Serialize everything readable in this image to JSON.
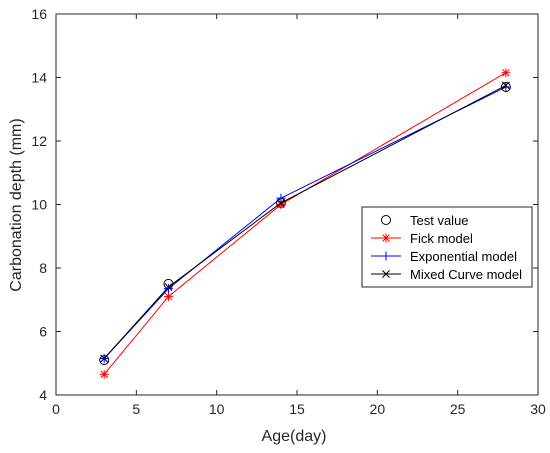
{
  "chart_data": {
    "type": "line",
    "xlabel": "Age(day)",
    "ylabel": "Carbonation depth (mm)",
    "xlim": [
      0,
      30
    ],
    "ylim": [
      4,
      16
    ],
    "xticks": [
      0,
      5,
      10,
      15,
      20,
      25,
      30
    ],
    "yticks": [
      4,
      6,
      8,
      10,
      12,
      14,
      16
    ],
    "grid": false,
    "legend_position": "right",
    "series": [
      {
        "name": "Test value",
        "color": "#000000",
        "marker": "circle",
        "line": false,
        "x": [
          3,
          7,
          14,
          28
        ],
        "y": [
          5.1,
          7.5,
          10.05,
          13.7
        ]
      },
      {
        "name": "Fick model",
        "color": "#ff0000",
        "marker": "asterisk",
        "line": true,
        "x": [
          3,
          7,
          14,
          28
        ],
        "y": [
          4.65,
          7.1,
          10.0,
          14.15
        ]
      },
      {
        "name": "Exponential model",
        "color": "#0000ff",
        "marker": "plus",
        "line": true,
        "x": [
          3,
          7,
          14,
          28
        ],
        "y": [
          5.15,
          7.35,
          10.2,
          13.7
        ]
      },
      {
        "name": "Mixed Curve model",
        "color": "#000000",
        "marker": "cross",
        "line": true,
        "x": [
          3,
          7,
          14,
          28
        ],
        "y": [
          5.15,
          7.4,
          10.05,
          13.75
        ]
      }
    ]
  }
}
